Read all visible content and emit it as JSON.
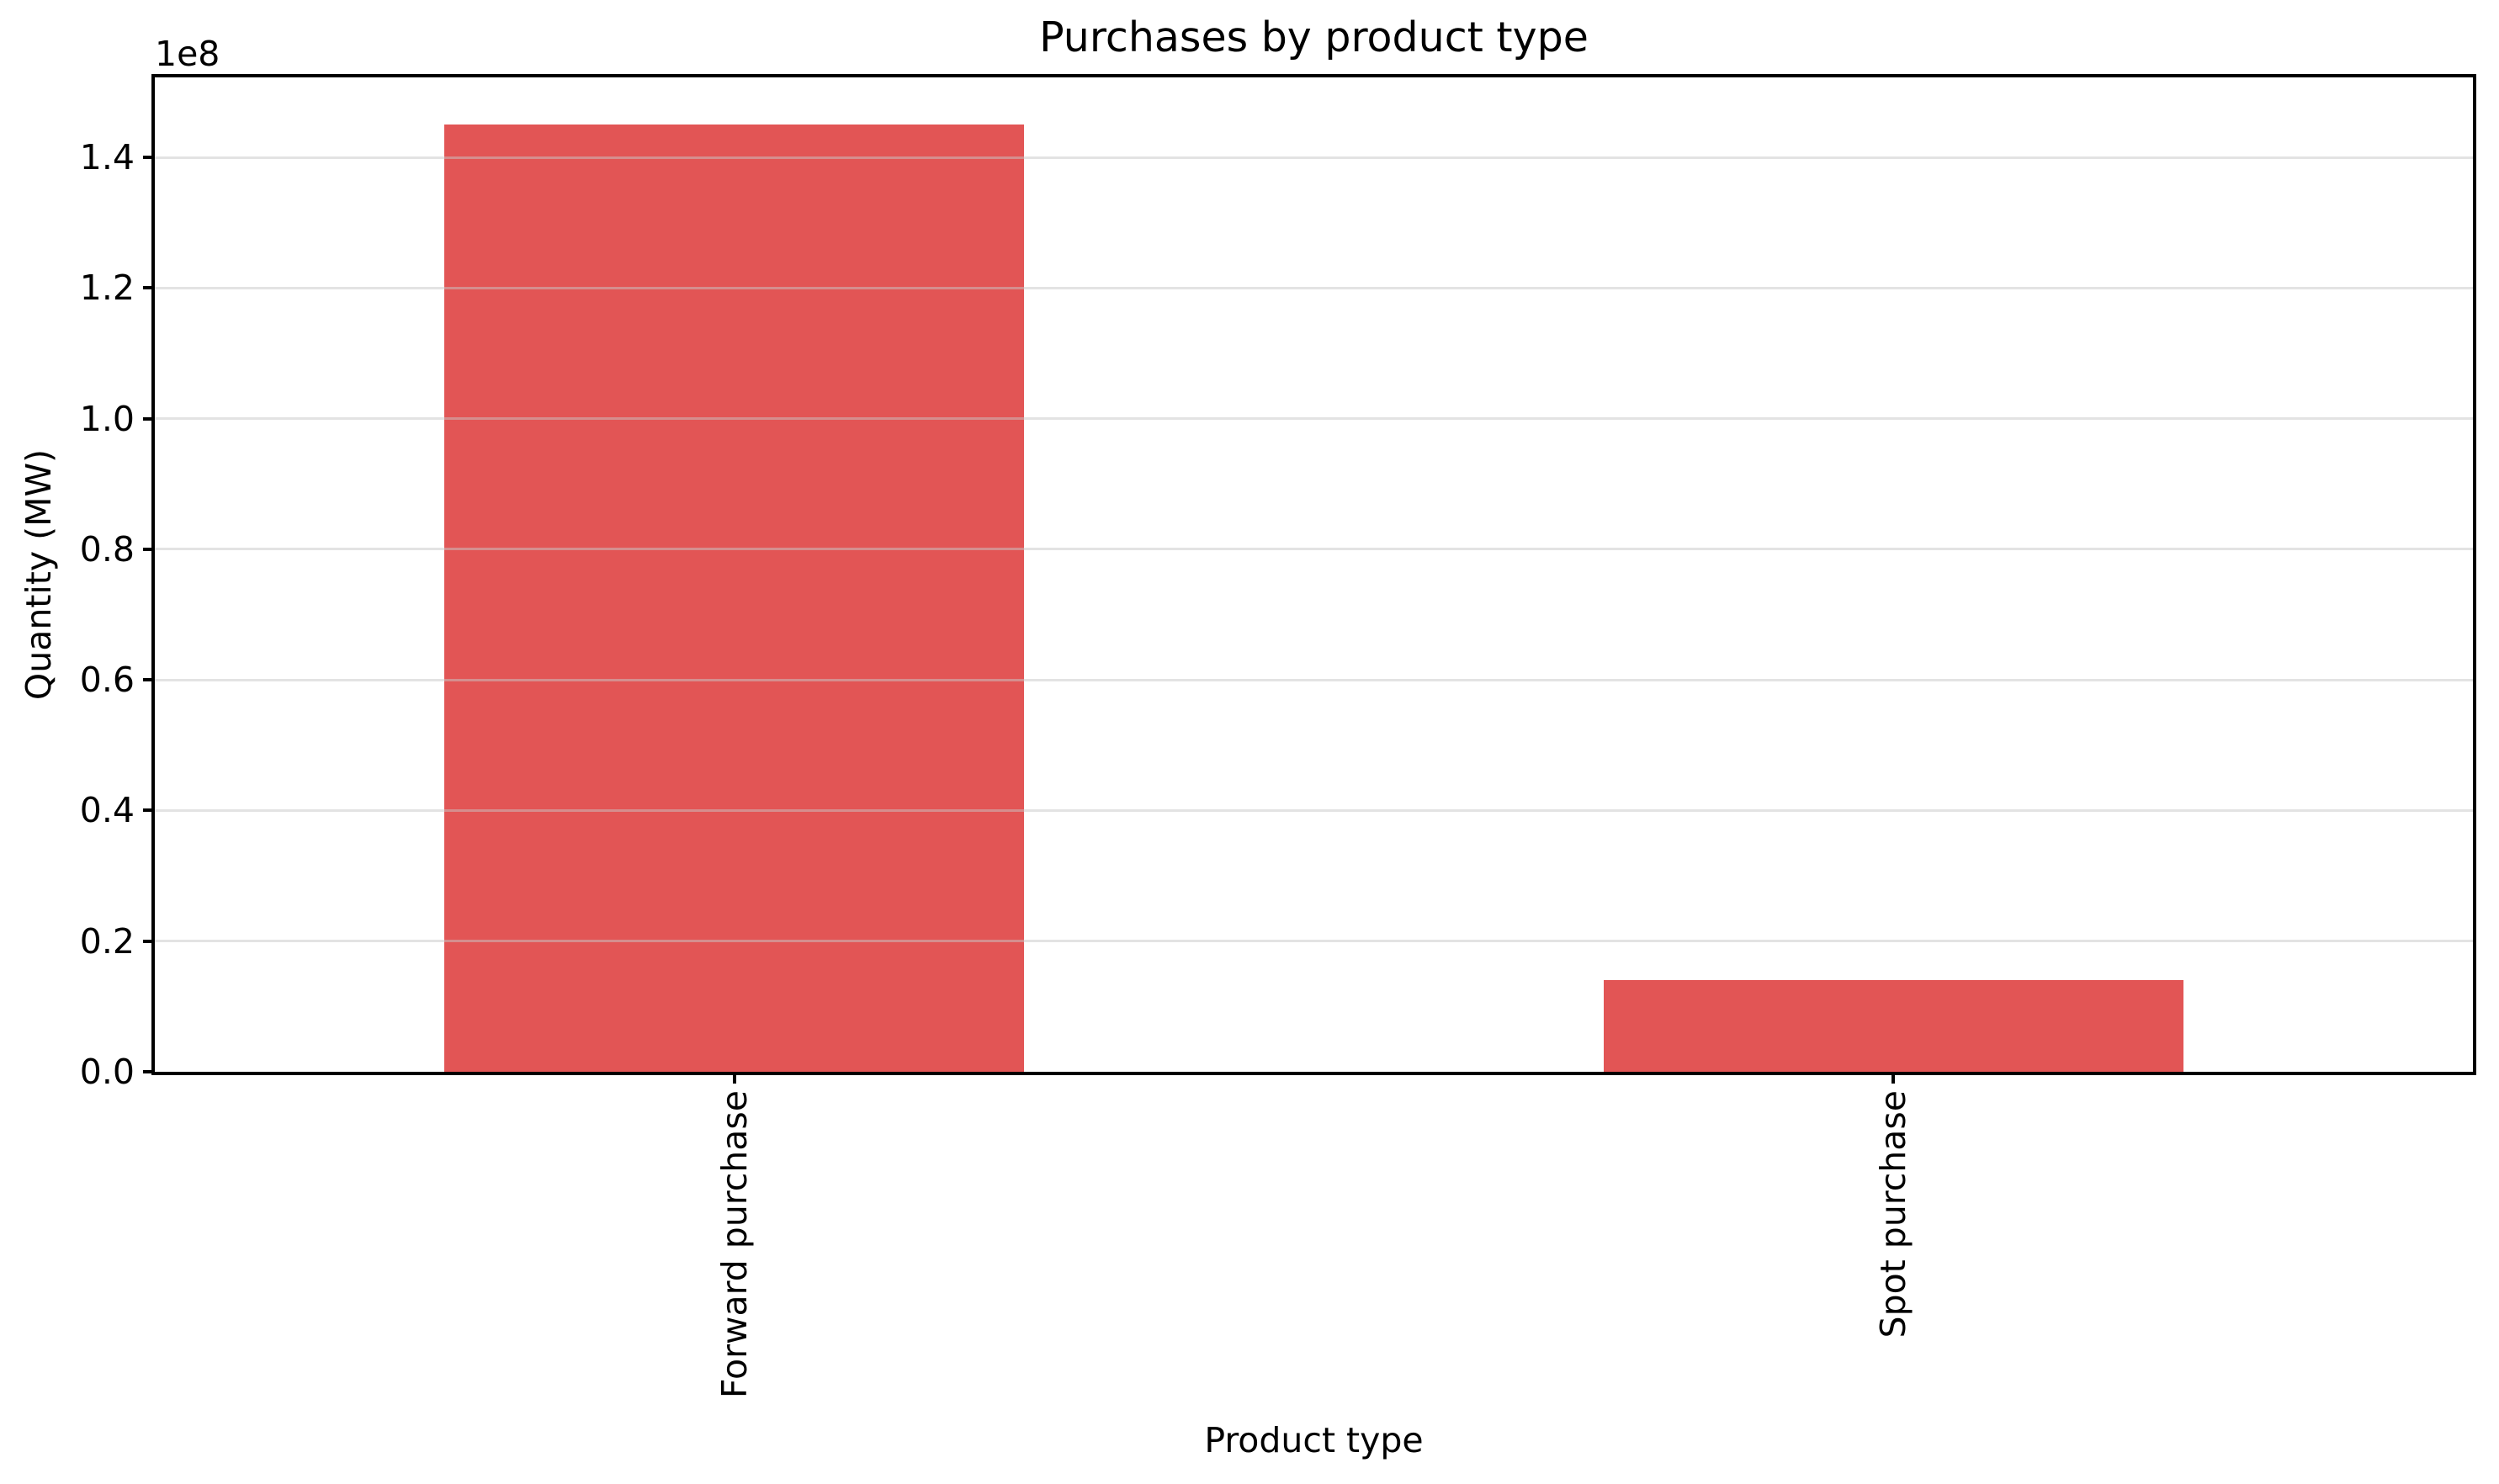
{
  "chart_data": {
    "type": "bar",
    "title": "Purchases by product type",
    "xlabel": "Product type",
    "ylabel": "Quantity (MW)",
    "categories": [
      "Forward purchase",
      "Spot purchase"
    ],
    "values": [
      145000000,
      14000000
    ],
    "series_name": "Quantity (MW)",
    "bar_color": "#e25555",
    "ylim": [
      0,
      152250000
    ],
    "yticks": {
      "values": [
        0,
        20000000,
        40000000,
        60000000,
        80000000,
        100000000,
        120000000,
        140000000
      ],
      "labels": [
        "0.0",
        "0.2",
        "0.4",
        "0.6",
        "0.8",
        "1.0",
        "1.2",
        "1.4"
      ],
      "offset_text": "1e8"
    },
    "grid": "horizontal",
    "gridline_color": "#c8c8c8",
    "gridline_opacity": 0.5,
    "legend": "none",
    "bar_width_fraction": 0.5,
    "tick_label_rotation_deg": 90
  }
}
